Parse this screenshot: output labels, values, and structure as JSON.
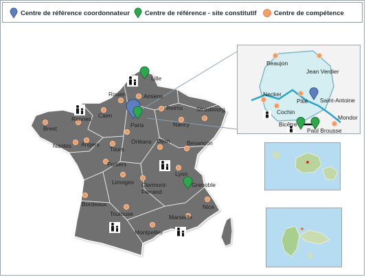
{
  "legend": {
    "coordinator": "Centre de référence  coordonnateur",
    "constitutive": "Centre de référence - site constitutif",
    "competence": "Centre de compétence"
  },
  "colors": {
    "coordinator": "#5b7fbf",
    "constitutive": "#2ea84e",
    "competence": "#ef9a60",
    "land": "#6f6f6f",
    "sea_inset": "#b6dcf2"
  },
  "cities": {
    "lille": "Lille",
    "amiens": "Amiens",
    "rouen": "Rouen",
    "caen": "Caen",
    "rennes": "Rennes",
    "brest": "Brest",
    "nantes": "Nantes",
    "angers": "Angers",
    "tours": "Tours",
    "orleans": "Orléans",
    "paris": "Paris",
    "reims": "Reims",
    "strasbourg": "Strasbourg",
    "nancy": "Nancy",
    "dijon": "Dijon",
    "besancon": "Besançon",
    "poitiers": "Poitiers",
    "lyon": "Lyon",
    "limoges": "Limoges",
    "clermont": "Clermont-Ferrand",
    "grenoble": "Grenoble",
    "bordeaux": "Bordeaux",
    "nice": "Nice",
    "toulouse": "Toulouse",
    "marseille": "Marseille",
    "montpellier": "Montpellier"
  },
  "paris_inset": {
    "beaujon": "Beaujon",
    "jean_verdier": "Jean Verdier",
    "necker": "Necker",
    "saint_antoine": "Saint-Antoine",
    "pitie": "Pitié",
    "cochin": "Cochin",
    "mondor": "Mondor",
    "bicetre": "Bicêtre",
    "paul_brousse": "Paul Brousse"
  }
}
